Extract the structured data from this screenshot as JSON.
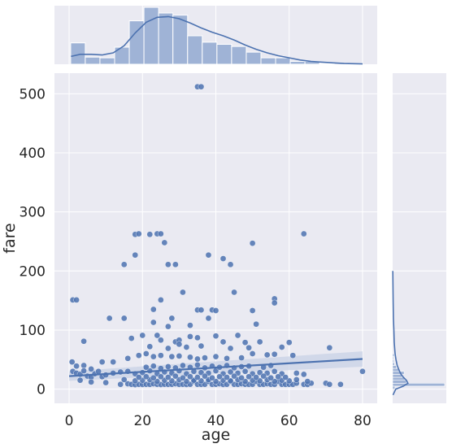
{
  "chart_data": {
    "type": "scatter",
    "title": "",
    "xlabel": "age",
    "ylabel": "fare",
    "xlim": [
      -4,
      84
    ],
    "ylim": [
      -24,
      535
    ],
    "xticks": [
      0,
      20,
      40,
      60,
      80
    ],
    "yticks": [
      0,
      100,
      200,
      300,
      400,
      500
    ],
    "grid": true,
    "colors": {
      "points": "#4c72b0",
      "regression": "#4c72b0",
      "ci_band": "#c8d2e6",
      "hist_fill": "#9fb3d6",
      "hist_edge": "#ffffff",
      "panel": "#eaeaf2",
      "grid": "#ffffff"
    },
    "regression": {
      "x": [
        0,
        80
      ],
      "y": [
        22,
        51
      ],
      "ci_lower": [
        14,
        38
      ],
      "ci_upper": [
        30,
        64
      ]
    },
    "points": [
      [
        35,
        512
      ],
      [
        36,
        512
      ],
      [
        18,
        262
      ],
      [
        19,
        263
      ],
      [
        22,
        262
      ],
      [
        24,
        263
      ],
      [
        25,
        263
      ],
      [
        26,
        248
      ],
      [
        64,
        263
      ],
      [
        50,
        247
      ],
      [
        15,
        211
      ],
      [
        18,
        227
      ],
      [
        27,
        211
      ],
      [
        29,
        211
      ],
      [
        38,
        227
      ],
      [
        42,
        221
      ],
      [
        44,
        211
      ],
      [
        45,
        164
      ],
      [
        31,
        164
      ],
      [
        1,
        151
      ],
      [
        2,
        151
      ],
      [
        56,
        153
      ],
      [
        56,
        146
      ],
      [
        25,
        151
      ],
      [
        23,
        135
      ],
      [
        11,
        120
      ],
      [
        15,
        120
      ],
      [
        23,
        113
      ],
      [
        28,
        120
      ],
      [
        35,
        134
      ],
      [
        36,
        134
      ],
      [
        39,
        134
      ],
      [
        40,
        133
      ],
      [
        27,
        106
      ],
      [
        33,
        108
      ],
      [
        38,
        120
      ],
      [
        50,
        133
      ],
      [
        51,
        110
      ],
      [
        4,
        81
      ],
      [
        17,
        86
      ],
      [
        20,
        91
      ],
      [
        24,
        91
      ],
      [
        29,
        80
      ],
      [
        30,
        83
      ],
      [
        33,
        89
      ],
      [
        35,
        87
      ],
      [
        40,
        90
      ],
      [
        42,
        80
      ],
      [
        46,
        91
      ],
      [
        48,
        79
      ],
      [
        52,
        80
      ],
      [
        60,
        79
      ],
      [
        25,
        83
      ],
      [
        22,
        72
      ],
      [
        27,
        69
      ],
      [
        30,
        76
      ],
      [
        32,
        71
      ],
      [
        36,
        73
      ],
      [
        44,
        69
      ],
      [
        49,
        70
      ],
      [
        58,
        71
      ],
      [
        71,
        70
      ],
      [
        0.8,
        46
      ],
      [
        2,
        39
      ],
      [
        4,
        40
      ],
      [
        6,
        34
      ],
      [
        9,
        46
      ],
      [
        12,
        46
      ],
      [
        16,
        52
      ],
      [
        19,
        57
      ],
      [
        21,
        60
      ],
      [
        23,
        55
      ],
      [
        25,
        57
      ],
      [
        28,
        55
      ],
      [
        30,
        56
      ],
      [
        33,
        54
      ],
      [
        35,
        51
      ],
      [
        37,
        53
      ],
      [
        40,
        55
      ],
      [
        43,
        52
      ],
      [
        47,
        53
      ],
      [
        50,
        60
      ],
      [
        54,
        58
      ],
      [
        56,
        59
      ],
      [
        61,
        57
      ],
      [
        1,
        30
      ],
      [
        2,
        27
      ],
      [
        3,
        25
      ],
      [
        4,
        31
      ],
      [
        5,
        22
      ],
      [
        6,
        20
      ],
      [
        7,
        26
      ],
      [
        8,
        30
      ],
      [
        9,
        21
      ],
      [
        10,
        24
      ],
      [
        12,
        27
      ],
      [
        14,
        29
      ],
      [
        16,
        30
      ],
      [
        18,
        26
      ],
      [
        20,
        28
      ],
      [
        22,
        31
      ],
      [
        24,
        26
      ],
      [
        26,
        29
      ],
      [
        28,
        27
      ],
      [
        30,
        31
      ],
      [
        32,
        26
      ],
      [
        34,
        30
      ],
      [
        36,
        28
      ],
      [
        38,
        27
      ],
      [
        40,
        31
      ],
      [
        42,
        26
      ],
      [
        44,
        29
      ],
      [
        46,
        27
      ],
      [
        48,
        30
      ],
      [
        50,
        26
      ],
      [
        52,
        28
      ],
      [
        54,
        27
      ],
      [
        56,
        30
      ],
      [
        58,
        26
      ],
      [
        62,
        27
      ],
      [
        64,
        25
      ],
      [
        3,
        15
      ],
      [
        6,
        12
      ],
      [
        10,
        11
      ],
      [
        14,
        8
      ],
      [
        16,
        9
      ],
      [
        17,
        8
      ],
      [
        18,
        7.5
      ],
      [
        19,
        8
      ],
      [
        20,
        7.8
      ],
      [
        21,
        8
      ],
      [
        22,
        7.9
      ],
      [
        23,
        9
      ],
      [
        24,
        8
      ],
      [
        25,
        7.7
      ],
      [
        26,
        8.1
      ],
      [
        27,
        7.9
      ],
      [
        28,
        8
      ],
      [
        29,
        9
      ],
      [
        30,
        7.9
      ],
      [
        31,
        8
      ],
      [
        32,
        7.8
      ],
      [
        33,
        8.1
      ],
      [
        34,
        13
      ],
      [
        35,
        8
      ],
      [
        36,
        7.9
      ],
      [
        37,
        8
      ],
      [
        38,
        13
      ],
      [
        39,
        7.9
      ],
      [
        40,
        8
      ],
      [
        41,
        9
      ],
      [
        42,
        7.8
      ],
      [
        43,
        8
      ],
      [
        44,
        13
      ],
      [
        45,
        8
      ],
      [
        46,
        7.9
      ],
      [
        47,
        9
      ],
      [
        48,
        8
      ],
      [
        49,
        7.9
      ],
      [
        50,
        8
      ],
      [
        51,
        13
      ],
      [
        52,
        7.9
      ],
      [
        53,
        8
      ],
      [
        54,
        9
      ],
      [
        55,
        8
      ],
      [
        56,
        7.9
      ],
      [
        57,
        13
      ],
      [
        58,
        8
      ],
      [
        59,
        7.9
      ],
      [
        60,
        8
      ],
      [
        61,
        7.9
      ],
      [
        62,
        10
      ],
      [
        64,
        8
      ],
      [
        65,
        7.8
      ],
      [
        66,
        10
      ],
      [
        70,
        10
      ],
      [
        71,
        8
      ],
      [
        74,
        8
      ],
      [
        80,
        30
      ],
      [
        15,
        16
      ],
      [
        18,
        14
      ],
      [
        20,
        15
      ],
      [
        22,
        16
      ],
      [
        24,
        13
      ],
      [
        26,
        15
      ],
      [
        28,
        14
      ],
      [
        30,
        16
      ],
      [
        32,
        13
      ],
      [
        34,
        15
      ],
      [
        36,
        14
      ],
      [
        38,
        16
      ],
      [
        40,
        13
      ],
      [
        42,
        15
      ],
      [
        44,
        14
      ],
      [
        46,
        16
      ],
      [
        48,
        13
      ],
      [
        50,
        15
      ],
      [
        52,
        14
      ],
      [
        54,
        16
      ],
      [
        56,
        13
      ],
      [
        58,
        15
      ],
      [
        60,
        14
      ],
      [
        62,
        16
      ],
      [
        65,
        13
      ],
      [
        19,
        20
      ],
      [
        21,
        21
      ],
      [
        23,
        19
      ],
      [
        25,
        21
      ],
      [
        27,
        20
      ],
      [
        29,
        22
      ],
      [
        31,
        19
      ],
      [
        33,
        21
      ],
      [
        35,
        20
      ],
      [
        37,
        22
      ],
      [
        39,
        19
      ],
      [
        41,
        21
      ],
      [
        43,
        20
      ],
      [
        45,
        22
      ],
      [
        47,
        19
      ],
      [
        49,
        21
      ],
      [
        51,
        20
      ],
      [
        53,
        22
      ],
      [
        55,
        19
      ],
      [
        57,
        21
      ],
      [
        59,
        20
      ],
      [
        21,
        37
      ],
      [
        23,
        39
      ],
      [
        25,
        35
      ],
      [
        27,
        38
      ],
      [
        29,
        36
      ],
      [
        31,
        40
      ],
      [
        33,
        37
      ],
      [
        35,
        41
      ],
      [
        37,
        36
      ],
      [
        39,
        39
      ],
      [
        41,
        37
      ],
      [
        43,
        40
      ],
      [
        45,
        36
      ],
      [
        47,
        38
      ],
      [
        49,
        39
      ],
      [
        53,
        37
      ],
      [
        55,
        40
      ]
    ],
    "age_hist": {
      "bin_edges": [
        0.42,
        4.4,
        8.4,
        12.4,
        16.4,
        20.4,
        24.4,
        28.3,
        32.3,
        36.3,
        40.3,
        44.3,
        48.3,
        52.3,
        56.3,
        60.3,
        64.3,
        68.3,
        72.3,
        76.3,
        80.0
      ],
      "counts": [
        30,
        10,
        9,
        24,
        61,
        80,
        72,
        69,
        40,
        31,
        28,
        25,
        17,
        9,
        9,
        4,
        4,
        1,
        0,
        0
      ]
    },
    "age_kde": {
      "x": [
        0.5,
        3,
        6,
        9,
        12,
        15,
        18,
        21,
        24,
        27,
        30,
        33,
        36,
        39,
        42,
        45,
        48,
        51,
        54,
        57,
        60,
        63,
        66,
        69,
        72,
        75,
        80
      ],
      "density": [
        11,
        14,
        14,
        13,
        16,
        26,
        44,
        59,
        66,
        67,
        64,
        58,
        51,
        45,
        40,
        34,
        27,
        21,
        16,
        12,
        9,
        6,
        4,
        3,
        2,
        1,
        0.5
      ]
    },
    "fare_hist": {
      "bin_edges": [
        0,
        5,
        10,
        15,
        20,
        25,
        30,
        35,
        40,
        45,
        50,
        55,
        60
      ],
      "counts": [
        15,
        340,
        90,
        80,
        60,
        75,
        40,
        25,
        12,
        8,
        6,
        10
      ]
    },
    "fare_kde": {
      "y": [
        -10,
        0,
        5,
        10,
        15,
        20,
        25,
        30,
        40,
        50,
        60,
        80,
        100,
        120,
        150,
        200
      ],
      "density": [
        2,
        20,
        70,
        100,
        90,
        70,
        55,
        45,
        30,
        22,
        16,
        10,
        8,
        5,
        3,
        1
      ]
    }
  }
}
